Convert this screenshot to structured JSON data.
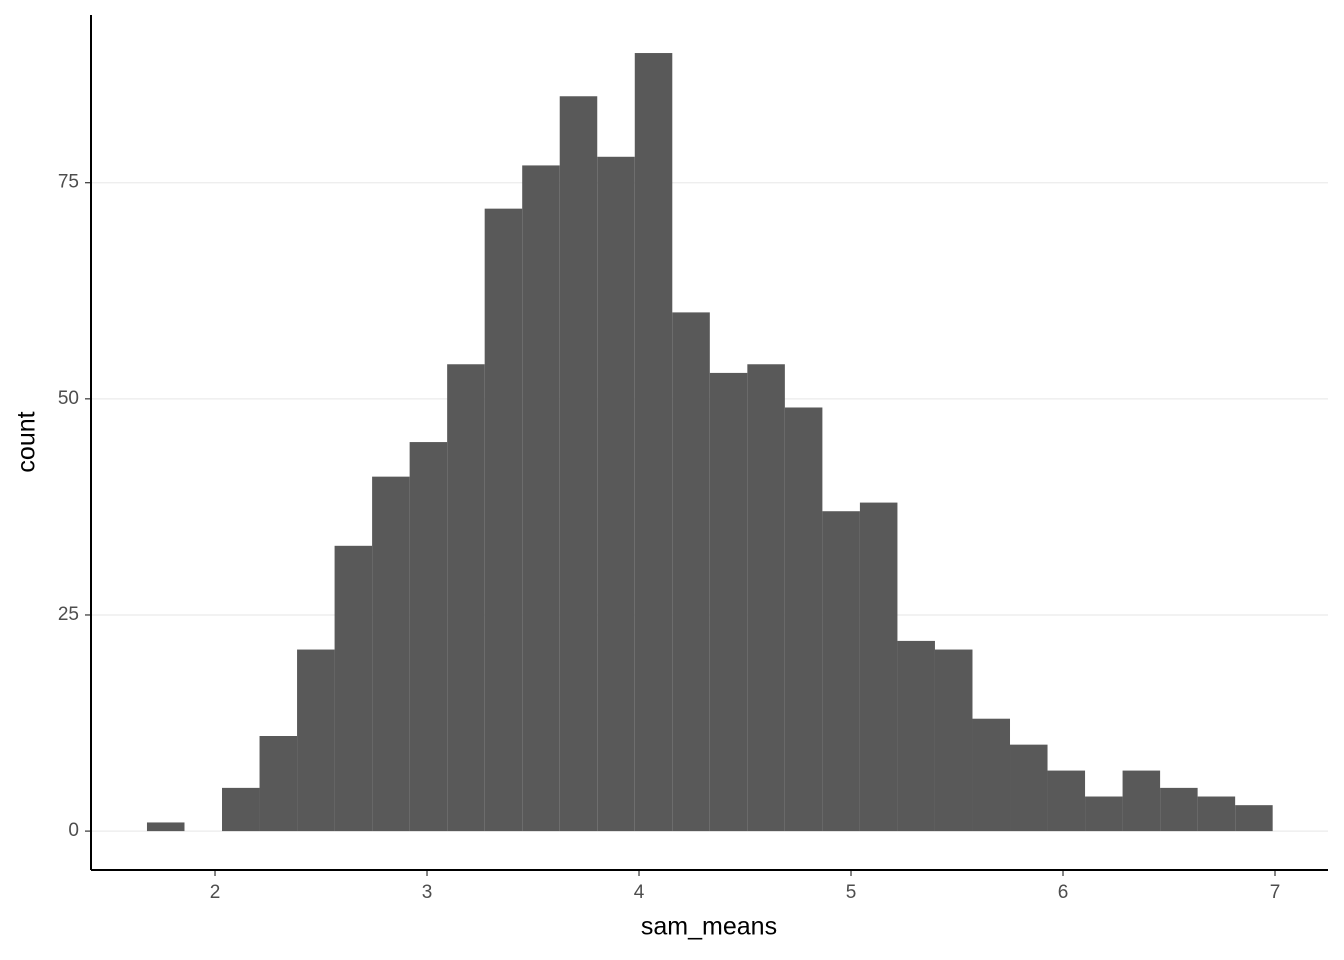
{
  "chart_data": {
    "type": "histogram",
    "x_label": "sam_means",
    "y_label": "count",
    "bins": [
      1.679,
      1.856,
      2.033,
      2.21,
      2.387,
      2.564,
      2.741,
      2.918,
      3.095,
      3.272,
      3.449,
      3.626,
      3.803,
      3.98,
      4.157,
      4.334,
      4.511,
      4.688,
      4.865,
      5.042,
      5.219,
      5.396,
      5.573,
      5.75,
      5.927,
      6.104,
      6.281,
      6.458,
      6.635,
      6.812,
      6.989
    ],
    "values": [
      1,
      0,
      5,
      11,
      21,
      33,
      41,
      45,
      54,
      72,
      77,
      85,
      78,
      90,
      60,
      53,
      54,
      49,
      37,
      38,
      22,
      21,
      13,
      10,
      7,
      4,
      7,
      5,
      4,
      3
    ],
    "color": "#595959",
    "xlim": [
      1.415,
      7.25
    ],
    "xticks": [
      2,
      3,
      4,
      5,
      6,
      7
    ],
    "ylim": [
      -4.5,
      94.4
    ],
    "yticks": [
      0,
      25,
      50,
      75
    ],
    "grid": true
  }
}
